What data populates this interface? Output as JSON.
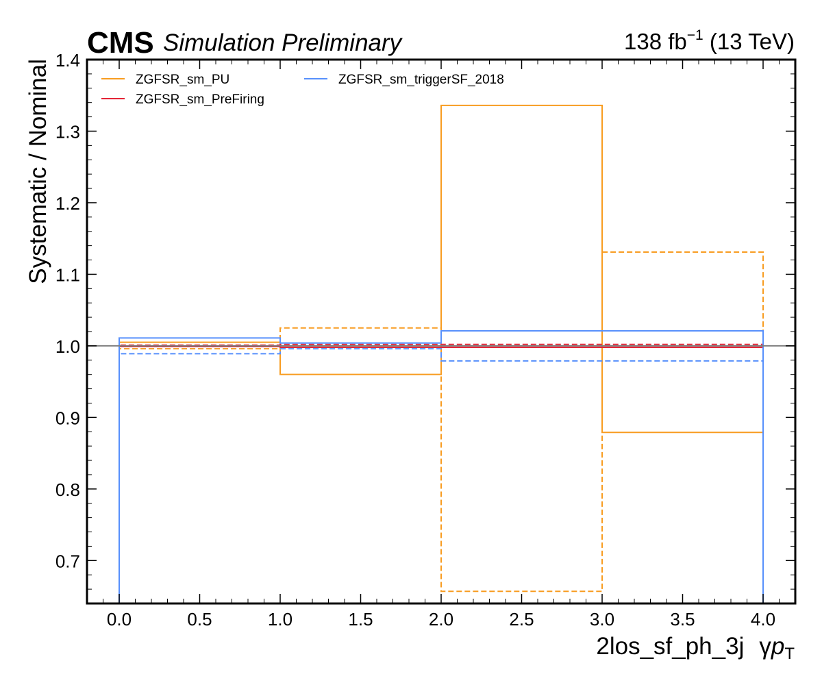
{
  "header": {
    "experiment": "CMS",
    "status": "Simulation Preliminary",
    "lumi_value": "138 fb",
    "lumi_exponent": "−1",
    "lumi_energy": " (13 TeV)"
  },
  "chart_data": {
    "type": "line",
    "subtype": "step-histogram-ratio",
    "xlabel": "2los_sf_ph_3j",
    "xlabel_var": "γ",
    "xlabel_p": "p",
    "xlabel_sub": "T",
    "ylabel": "Systematic / Nominal",
    "xlim": [
      -0.2,
      4.2
    ],
    "ylim": [
      0.64,
      1.4
    ],
    "x_ticks": [
      "0.0",
      "0.5",
      "1.0",
      "1.5",
      "2.0",
      "2.5",
      "3.0",
      "3.5",
      "4.0"
    ],
    "y_ticks": [
      "0.7",
      "0.8",
      "0.9",
      "1.0",
      "1.1",
      "1.2",
      "1.3",
      "1.4"
    ],
    "bin_edges": [
      0,
      1,
      2,
      3,
      4
    ],
    "reference_line": 1.0,
    "grid": false,
    "legend_placement": "top-left, two columns",
    "series": [
      {
        "name": "ZGFSR_sm_PU",
        "color": "#f89c20",
        "variation": "up",
        "values": [
          1.005,
          0.96,
          1.336,
          0.879
        ]
      },
      {
        "name": "",
        "color": "#f89c20",
        "variation": "down",
        "values": [
          0.996,
          1.025,
          0.657,
          1.131
        ]
      },
      {
        "name": "ZGFSR_sm_PreFiring",
        "color": "#e42536",
        "variation": "up",
        "values": [
          0.999,
          0.998,
          0.998,
          0.998
        ]
      },
      {
        "name": "",
        "color": "#e42536",
        "variation": "down",
        "values": [
          1.001,
          1.002,
          1.002,
          1.002
        ]
      },
      {
        "name": "ZGFSR_sm_triggerSF_2018",
        "color": "#5790fc",
        "variation": "up",
        "values": [
          1.011,
          1.004,
          1.021,
          1.021
        ]
      },
      {
        "name": "",
        "color": "#5790fc",
        "variation": "down",
        "values": [
          0.989,
          0.996,
          0.979,
          0.979
        ]
      }
    ],
    "legend": [
      {
        "label": "ZGFSR_sm_PU",
        "color": "#f89c20"
      },
      {
        "label": "ZGFSR_sm_PreFiring",
        "color": "#e42536"
      },
      {
        "label": "ZGFSR_sm_triggerSF_2018",
        "color": "#5790fc"
      }
    ]
  }
}
